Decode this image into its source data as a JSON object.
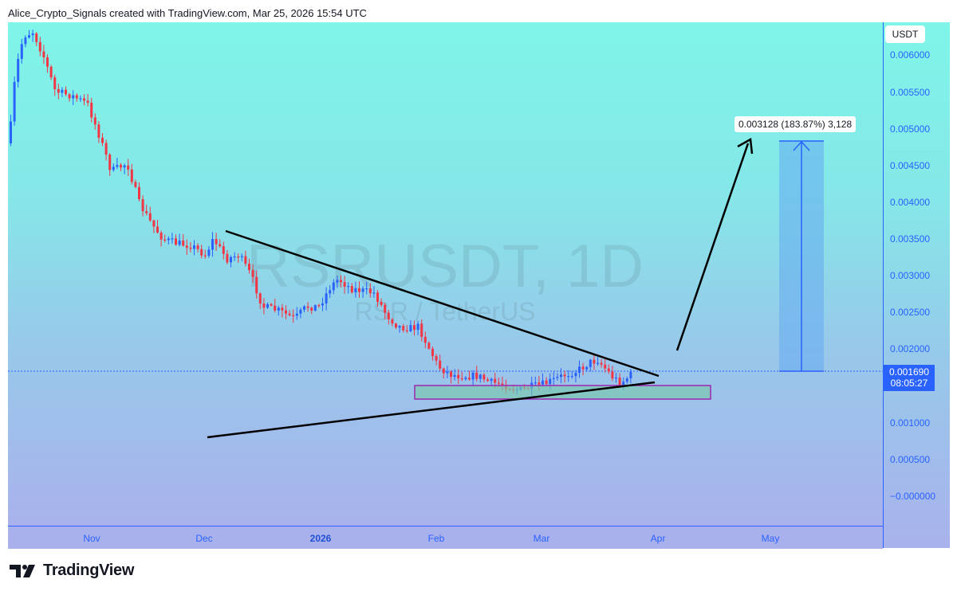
{
  "header": {
    "text": "Alice_Crypto_Signals created with TradingView.com, Mar 25, 2026 15:54 UTC"
  },
  "watermark": {
    "symbol": "RSRUSDT, 1D",
    "description": "RSR / TetherUS"
  },
  "price_axis": {
    "currency": "USDT",
    "labels": [
      "0.006000",
      "0.005500",
      "0.005000",
      "0.004500",
      "0.004000",
      "0.003500",
      "0.003000",
      "0.002500",
      "0.002000",
      "0.001000",
      "0.000500",
      "−0.000000"
    ],
    "current_price": "0.001690",
    "countdown": "08:05:27"
  },
  "time_axis": {
    "labels": [
      {
        "text": "Nov",
        "bold": false
      },
      {
        "text": "Dec",
        "bold": false
      },
      {
        "text": "2026",
        "bold": true
      },
      {
        "text": "Feb",
        "bold": false
      },
      {
        "text": "Mar",
        "bold": false
      },
      {
        "text": "Apr",
        "bold": false
      },
      {
        "text": "May",
        "bold": false
      }
    ]
  },
  "measure": {
    "label": "0.003128 (183.87%) 3,128"
  },
  "footer": {
    "brand": "TradingView"
  },
  "colors": {
    "up": "#2962ff",
    "down": "#f23645",
    "accent": "#2962ff",
    "zone": "#9c27b0"
  }
}
